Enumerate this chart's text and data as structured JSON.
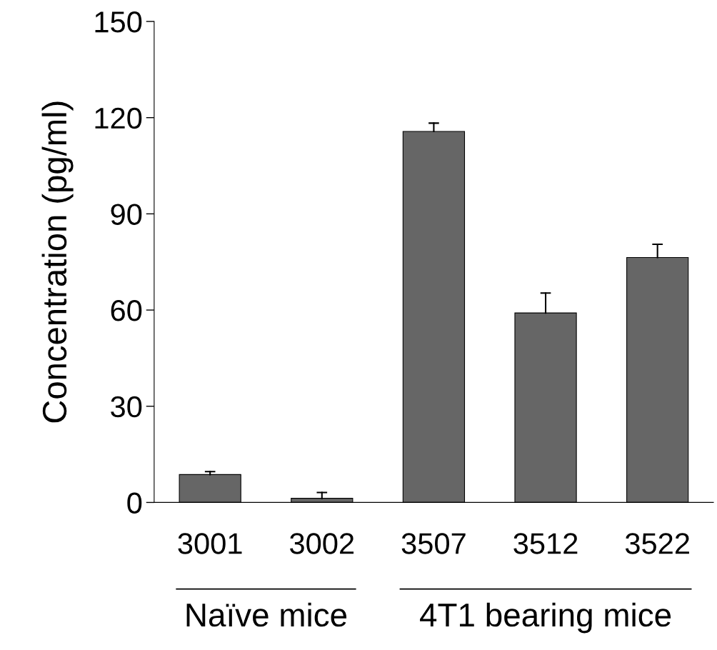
{
  "chart_data": {
    "type": "bar",
    "ylabel": "Concentration (pg/ml)",
    "categories": [
      "3001",
      "3002",
      "3507",
      "3512",
      "3522"
    ],
    "values": [
      8.7,
      1.3,
      115.7,
      59.1,
      76.4
    ],
    "errors": [
      [
        8.7,
        9.6
      ],
      [
        1.3,
        3.1
      ],
      [
        115.7,
        118.3
      ],
      [
        59.1,
        65.3
      ],
      [
        76.4,
        80.5
      ]
    ],
    "color": "#666666",
    "ylim": [
      0,
      150
    ],
    "yticks": [
      0,
      30,
      60,
      90,
      120,
      150
    ],
    "grid": false,
    "legend": false,
    "annotations": [
      "Naïve mice",
      "4T1 bearing mice"
    ]
  }
}
